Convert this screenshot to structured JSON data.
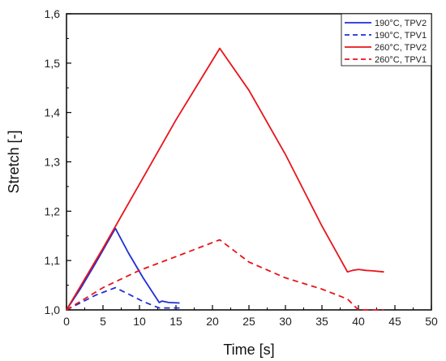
{
  "chart_data": {
    "type": "line",
    "title": "",
    "xlabel": "Time [s]",
    "ylabel": "Stretch [-]",
    "xlim": [
      0,
      50
    ],
    "ylim": [
      1.0,
      1.6
    ],
    "x_ticks": [
      "0",
      "5",
      "10",
      "15",
      "20",
      "25",
      "30",
      "35",
      "40",
      "45",
      "50"
    ],
    "y_ticks": [
      "1,0",
      "1,1",
      "1,2",
      "1,3",
      "1,4",
      "1,5",
      "1,6"
    ],
    "grid": false,
    "legend_position": "top-right",
    "series": [
      {
        "name": "190°C, TPV2",
        "color": "#1f2fd6",
        "dash": "solid",
        "x": [
          0,
          2,
          4,
          6.7,
          8.5,
          10.5,
          12.7,
          13.1,
          14,
          15.5
        ],
        "y": [
          1.0,
          1.045,
          1.095,
          1.165,
          1.115,
          1.065,
          1.015,
          1.018,
          1.015,
          1.014
        ]
      },
      {
        "name": "190°C, TPV1",
        "color": "#1f2fd6",
        "dash": "dashed",
        "x": [
          0,
          2,
          4,
          6.7,
          8.5,
          10.5,
          12.7,
          14,
          15.5
        ],
        "y": [
          1.0,
          1.015,
          1.03,
          1.045,
          1.032,
          1.017,
          1.004,
          1.004,
          1.004
        ]
      },
      {
        "name": "260°C, TPV2",
        "color": "#e8141a",
        "dash": "solid",
        "x": [
          0,
          5,
          10,
          15,
          21,
          25,
          30,
          35,
          38.5,
          39.2,
          40,
          41,
          42,
          43.5
        ],
        "y": [
          1.0,
          1.125,
          1.255,
          1.385,
          1.53,
          1.445,
          1.315,
          1.17,
          1.077,
          1.08,
          1.082,
          1.08,
          1.079,
          1.077
        ]
      },
      {
        "name": "260°C, TPV1",
        "color": "#e8141a",
        "dash": "dashed",
        "x": [
          0,
          5,
          10,
          15,
          21,
          25,
          30,
          35,
          38.5,
          40,
          40.5,
          43.5
        ],
        "y": [
          1.0,
          1.045,
          1.08,
          1.108,
          1.142,
          1.097,
          1.065,
          1.042,
          1.022,
          1.0,
          1.0,
          1.0
        ]
      }
    ]
  }
}
